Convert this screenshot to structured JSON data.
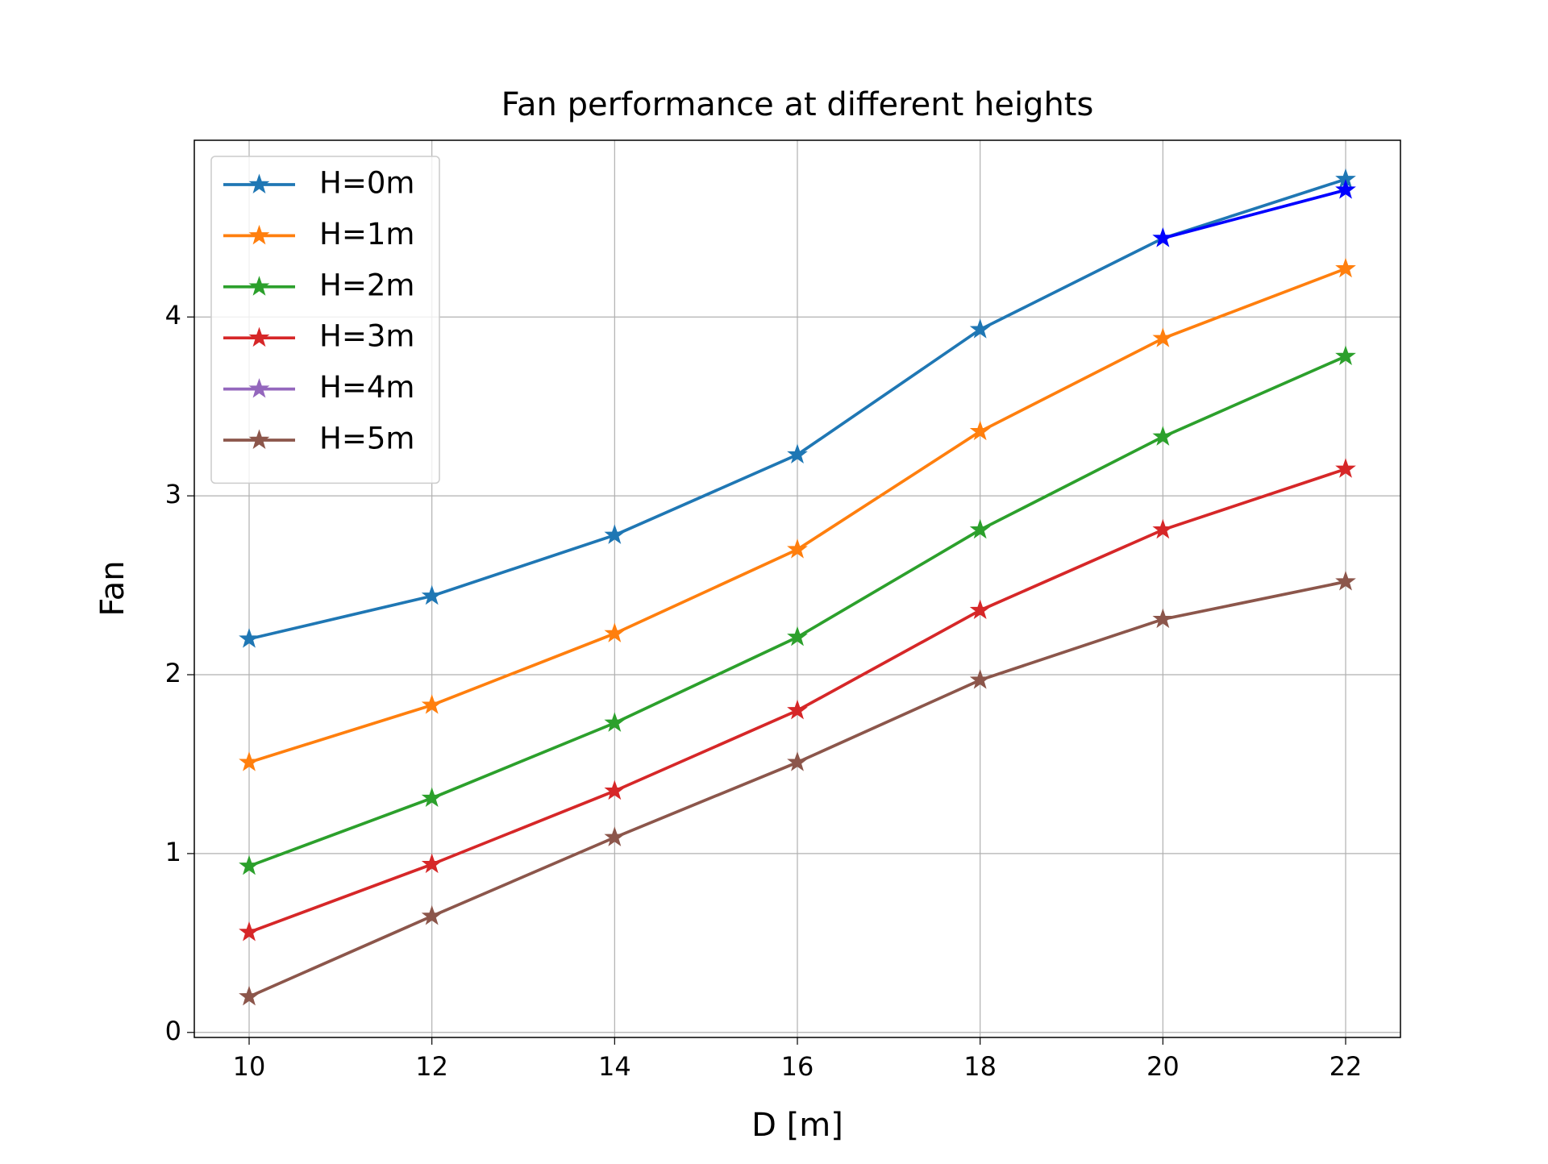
{
  "chart_data": {
    "type": "line",
    "title": "Fan performance at different heights",
    "xlabel": "D [m]",
    "ylabel": "Fan",
    "x": [
      10,
      12,
      14,
      16,
      18,
      20,
      22
    ],
    "series": [
      {
        "name": "H=0m",
        "color": "#1f77b4",
        "values": [
          2.2,
          2.44,
          2.78,
          3.23,
          3.93,
          4.44,
          4.77
        ]
      },
      {
        "name": "H=1m",
        "color": "#ff7f0e",
        "values": [
          1.51,
          1.83,
          2.23,
          2.7,
          3.36,
          3.88,
          4.27
        ]
      },
      {
        "name": "H=2m",
        "color": "#2ca02c",
        "values": [
          0.93,
          1.31,
          1.73,
          2.21,
          2.81,
          3.33,
          3.78
        ]
      },
      {
        "name": "H=3m",
        "color": "#d62728",
        "values": [
          0.56,
          0.94,
          1.35,
          1.8,
          2.36,
          2.81,
          3.15
        ]
      },
      {
        "name": "H=4m",
        "color": "#9467bd",
        "values": [
          null,
          null,
          null,
          null,
          null,
          null,
          null
        ]
      },
      {
        "name": "H=5m",
        "color": "#8c564b",
        "values": [
          0.2,
          0.65,
          1.09,
          1.51,
          1.97,
          2.31,
          2.52
        ]
      },
      {
        "color": "#0000ff",
        "values": [
          null,
          null,
          null,
          null,
          null,
          4.44,
          4.71
        ]
      }
    ],
    "xlim": [
      9.4,
      22.6
    ],
    "ylim": [
      -0.028,
      4.988
    ],
    "xticks": [
      10,
      12,
      14,
      16,
      18,
      20,
      22
    ],
    "yticks": [
      0,
      1,
      2,
      3,
      4
    ],
    "grid": true,
    "legend": "upper left",
    "marker": "star"
  }
}
